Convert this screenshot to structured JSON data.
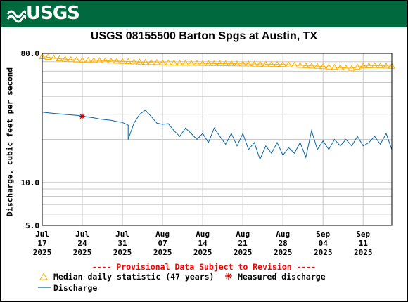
{
  "banner": {
    "logo_text": "USGS",
    "color": "#006a3f"
  },
  "chart_data": {
    "type": "line",
    "title": "USGS 08155500 Barton Spgs at Austin, TX",
    "xlabel": "",
    "ylabel": "Discharge, cubic feet per second",
    "y_scale": "log",
    "ylim": [
      5.0,
      80.0
    ],
    "y_ticks": [
      "80.0",
      "10.0",
      "5.0"
    ],
    "grid": true,
    "x_range": [
      "2025-07-17",
      "2025-09-16"
    ],
    "x_ticks": [
      {
        "date": "2025-07-17",
        "lines": [
          "Jul",
          "17",
          "2025"
        ]
      },
      {
        "date": "2025-07-24",
        "lines": [
          "Jul",
          "24",
          "2025"
        ]
      },
      {
        "date": "2025-07-31",
        "lines": [
          "Jul",
          "31",
          "2025"
        ]
      },
      {
        "date": "2025-08-07",
        "lines": [
          "Aug",
          "07",
          "2025"
        ]
      },
      {
        "date": "2025-08-14",
        "lines": [
          "Aug",
          "14",
          "2025"
        ]
      },
      {
        "date": "2025-08-21",
        "lines": [
          "Aug",
          "21",
          "2025"
        ]
      },
      {
        "date": "2025-08-28",
        "lines": [
          "Aug",
          "28",
          "2025"
        ]
      },
      {
        "date": "2025-09-04",
        "lines": [
          "Sep",
          "04",
          "2025"
        ]
      },
      {
        "date": "2025-09-11",
        "lines": [
          "Sep",
          "11",
          "2025"
        ]
      }
    ],
    "series": [
      {
        "name": "Median daily statistic (47 years)",
        "marker": "triangle",
        "color": "#ffb000",
        "points": [
          [
            "2025-07-17",
            76.0
          ],
          [
            "2025-07-20",
            73.5
          ],
          [
            "2025-07-23",
            72.0
          ],
          [
            "2025-07-26",
            71.5
          ],
          [
            "2025-07-29",
            70.8
          ],
          [
            "2025-08-01",
            70.2
          ],
          [
            "2025-08-04",
            69.3
          ],
          [
            "2025-08-07",
            69.0
          ],
          [
            "2025-08-10",
            68.5
          ],
          [
            "2025-08-13",
            68.3
          ],
          [
            "2025-08-16",
            68.0
          ],
          [
            "2025-08-19",
            67.8
          ],
          [
            "2025-08-22",
            67.5
          ],
          [
            "2025-08-25",
            67.3
          ],
          [
            "2025-08-28",
            67.0
          ],
          [
            "2025-08-31",
            66.0
          ],
          [
            "2025-09-03",
            65.0
          ],
          [
            "2025-09-06",
            64.0
          ],
          [
            "2025-09-09",
            63.0
          ],
          [
            "2025-09-11",
            65.5
          ],
          [
            "2025-09-13",
            65.8
          ],
          [
            "2025-09-16",
            65.0
          ]
        ]
      },
      {
        "name": "Measured discharge",
        "marker": "asterisk",
        "color": "#cc0000",
        "points": [
          [
            "2025-07-24",
            29.0
          ]
        ]
      },
      {
        "name": "Discharge",
        "marker": "line",
        "color": "#0a64a4",
        "points": [
          [
            "2025-07-17",
            31.0
          ],
          [
            "2025-07-18",
            30.7
          ],
          [
            "2025-07-19",
            30.4
          ],
          [
            "2025-07-20",
            30.2
          ],
          [
            "2025-07-21",
            29.9
          ],
          [
            "2025-07-22",
            29.7
          ],
          [
            "2025-07-23",
            29.5
          ],
          [
            "2025-07-24",
            29.1
          ],
          [
            "2025-07-25",
            28.7
          ],
          [
            "2025-07-26",
            28.3
          ],
          [
            "2025-07-27",
            27.8
          ],
          [
            "2025-07-28",
            27.5
          ],
          [
            "2025-07-29",
            27.2
          ],
          [
            "2025-07-30",
            26.7
          ],
          [
            "2025-07-31",
            26.3
          ],
          [
            "2025-08-01",
            25.2
          ],
          [
            "2025-08-01",
            20.0
          ],
          [
            "2025-08-02",
            26.0
          ],
          [
            "2025-08-03",
            30.0
          ],
          [
            "2025-08-04",
            32.0
          ],
          [
            "2025-08-05",
            29.0
          ],
          [
            "2025-08-06",
            26.0
          ],
          [
            "2025-08-07",
            25.5
          ],
          [
            "2025-08-08",
            25.8
          ],
          [
            "2025-08-09",
            23.0
          ],
          [
            "2025-08-10",
            21.0
          ],
          [
            "2025-08-11",
            24.0
          ],
          [
            "2025-08-12",
            22.0
          ],
          [
            "2025-08-13",
            20.0
          ],
          [
            "2025-08-14",
            22.0
          ],
          [
            "2025-08-15",
            19.0
          ],
          [
            "2025-08-16",
            24.0
          ],
          [
            "2025-08-17",
            21.0
          ],
          [
            "2025-08-18",
            18.5
          ],
          [
            "2025-08-19",
            22.0
          ],
          [
            "2025-08-20",
            18.0
          ],
          [
            "2025-08-21",
            22.0
          ],
          [
            "2025-08-22",
            17.0
          ],
          [
            "2025-08-23",
            19.0
          ],
          [
            "2025-08-24",
            14.5
          ],
          [
            "2025-08-25",
            18.0
          ],
          [
            "2025-08-26",
            16.0
          ],
          [
            "2025-08-27",
            19.0
          ],
          [
            "2025-08-28",
            15.5
          ],
          [
            "2025-08-29",
            17.5
          ],
          [
            "2025-08-30",
            16.0
          ],
          [
            "2025-08-31",
            19.0
          ],
          [
            "2025-09-01",
            15.0
          ],
          [
            "2025-09-02",
            23.0
          ],
          [
            "2025-09-03",
            17.0
          ],
          [
            "2025-09-04",
            19.5
          ],
          [
            "2025-09-05",
            17.0
          ],
          [
            "2025-09-06",
            20.0
          ],
          [
            "2025-09-07",
            18.0
          ],
          [
            "2025-09-08",
            20.0
          ],
          [
            "2025-09-09",
            18.0
          ],
          [
            "2025-09-10",
            21.0
          ],
          [
            "2025-09-11",
            18.0
          ],
          [
            "2025-09-12",
            19.0
          ],
          [
            "2025-09-13",
            21.0
          ],
          [
            "2025-09-14",
            18.5
          ],
          [
            "2025-09-15",
            22.0
          ],
          [
            "2025-09-16",
            17.0
          ]
        ]
      }
    ],
    "annotation": "---- Provisional Data Subject to Revision ----",
    "annotation_color": "#ff0000",
    "legend_position": "bottom"
  },
  "legend": {
    "median_label": "Median daily statistic (47 years)",
    "measured_label": "Measured discharge",
    "discharge_label": "Discharge"
  }
}
